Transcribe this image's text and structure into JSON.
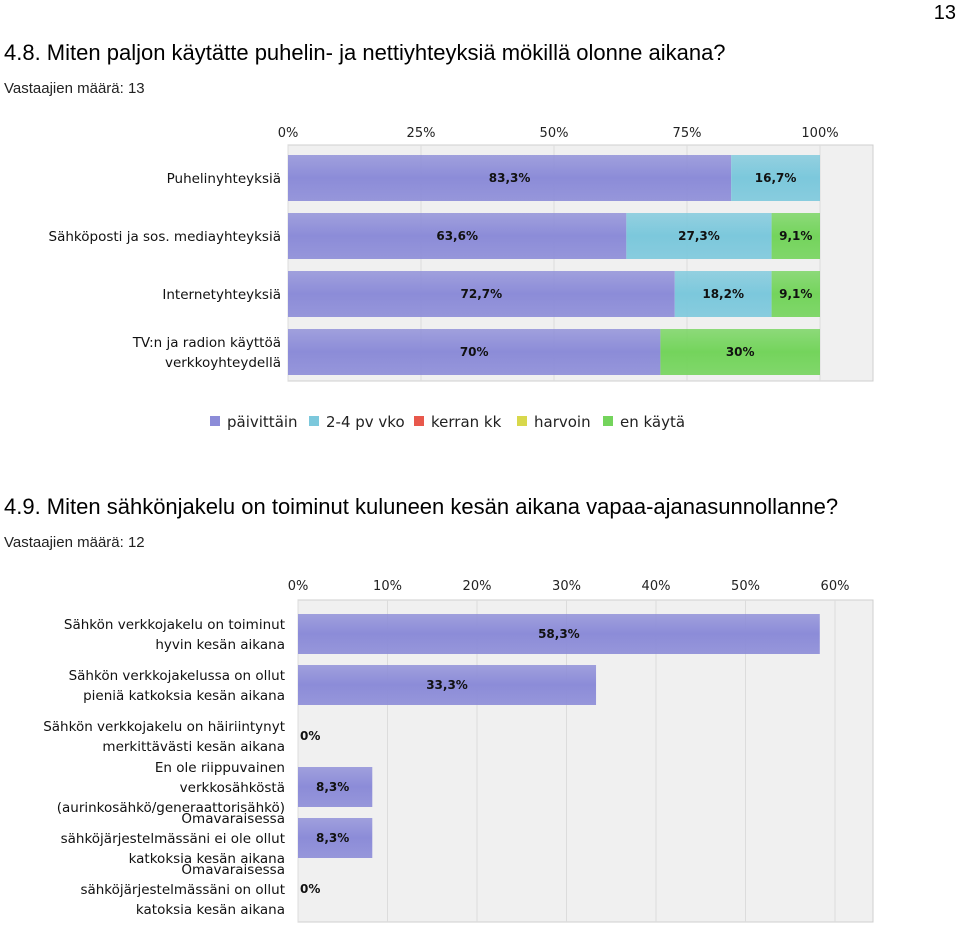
{
  "page": {
    "number": "13"
  },
  "q1": {
    "title": "4.8. Miten paljon käytätte puhelin- ja nettiyhteyksiä mökillä olonne aikana?",
    "respondents": "Vastaajien määrä: 13"
  },
  "q2": {
    "title": "4.9. Miten sähkönjakelu on toiminut kuluneen kesän aikana vapaa-ajanasunnollanne?",
    "respondents": "Vastaajien määrä: 12"
  },
  "chart_data": [
    {
      "type": "bar",
      "orientation": "horizontal",
      "stacked": true,
      "categories": [
        [
          "Puhelinyhteyksiä"
        ],
        [
          "Sähköposti ja sos. mediayhteyksiä"
        ],
        [
          "Internetyhteyksiä"
        ],
        [
          "TV:n ja radion käyttöä",
          "verkkoyhteydellä"
        ]
      ],
      "series": [
        {
          "name": "päivittäin",
          "color": "#8c8cd8",
          "values": [
            83.3,
            63.6,
            72.7,
            70
          ]
        },
        {
          "name": "2-4 pv vko",
          "color": "#7cc8dc",
          "values": [
            16.7,
            27.3,
            18.2,
            0
          ]
        },
        {
          "name": "kerran kk",
          "color": "#e8584c",
          "values": [
            0,
            0,
            0,
            0
          ]
        },
        {
          "name": "harvoin",
          "color": "#d8d84c",
          "values": [
            0,
            0,
            0,
            0
          ]
        },
        {
          "name": "en käytä",
          "color": "#74d45c",
          "values": [
            0,
            9.1,
            9.1,
            30
          ]
        }
      ],
      "data_labels": [
        [
          "83,3%",
          "16,7%",
          "",
          "",
          ""
        ],
        [
          "63,6%",
          "27,3%",
          "",
          "",
          "9,1%"
        ],
        [
          "72,7%",
          "18,2%",
          "",
          "",
          "9,1%"
        ],
        [
          "70%",
          "",
          "",
          "",
          "30%"
        ]
      ],
      "xlim": [
        0,
        100
      ],
      "ticks": [
        0,
        25,
        50,
        75,
        100
      ],
      "tick_labels": [
        "0%",
        "25%",
        "50%",
        "75%",
        "100%"
      ],
      "legend_position": "bottom",
      "grid": true
    },
    {
      "type": "bar",
      "orientation": "horizontal",
      "categories": [
        [
          "Sähkön verkkojakelu on toiminut",
          "hyvin kesän aikana"
        ],
        [
          "Sähkön verkkojakelussa on ollut",
          "pieniä katkoksia kesän aikana"
        ],
        [
          "Sähkön verkkojakelu on häiriintynyt",
          "merkittävästi kesän aikana"
        ],
        [
          "En ole riippuvainen",
          "verkkosähköstä",
          "(aurinkosähkö/generaattorisähkö)"
        ],
        [
          "Omavaraisessa",
          "sähköjärjestelmässäni ei ole ollut",
          "katkoksia kesän aikana"
        ],
        [
          "Omavaraisessa",
          "sähköjärjestelmässäni on ollut",
          "katoksia kesän aikana"
        ]
      ],
      "values": [
        58.3,
        33.3,
        0,
        8.3,
        8.3,
        0
      ],
      "data_labels": [
        "58,3%",
        "33,3%",
        "0%",
        "8,3%",
        "8,3%",
        "0%"
      ],
      "color": "#8c8cd8",
      "xlim": [
        0,
        64
      ],
      "ticks": [
        0,
        10,
        20,
        30,
        40,
        50,
        60
      ],
      "tick_labels": [
        "0%",
        "10%",
        "20%",
        "30%",
        "40%",
        "50%",
        "60%"
      ],
      "grid": true
    }
  ]
}
